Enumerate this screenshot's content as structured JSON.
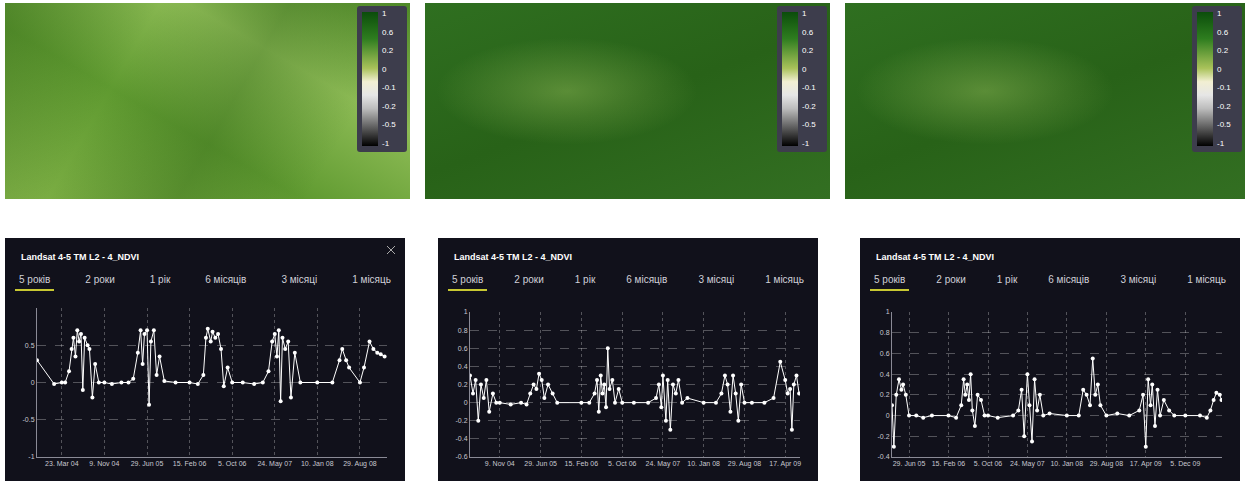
{
  "maps": [
    {
      "colorbar_ticks": [
        1,
        0.6,
        0.2,
        0,
        -0.1,
        -0.2,
        -0.5,
        -1
      ]
    },
    {
      "colorbar_ticks": [
        1,
        0.6,
        0.2,
        0,
        -0.1,
        -0.2,
        -0.5,
        -1
      ]
    },
    {
      "colorbar_ticks": [
        1,
        0.6,
        0.2,
        0,
        -0.1,
        -0.2,
        -0.5,
        -1
      ]
    }
  ],
  "chart_data": [
    {
      "type": "line",
      "title": "Landsat 4-5 TM L2 - 4_NDVI",
      "annotations": [
        "5 років",
        "2 роки",
        "1 рік",
        "6 місяців",
        "3 місяці",
        "1 місяць"
      ],
      "color": "#ffffff",
      "marker": "circle",
      "grid": true,
      "x": [
        "2003-11-09",
        "2004-02-10",
        "2004-03-23",
        "2004-04-10",
        "2004-05-01",
        "2004-05-15",
        "2004-05-25",
        "2004-06-05",
        "2004-06-15",
        "2004-06-25",
        "2004-07-05",
        "2004-07-15",
        "2004-07-25",
        "2004-08-10",
        "2004-08-20",
        "2004-09-05",
        "2004-09-20",
        "2004-10-10",
        "2004-11-09",
        "2004-12-20",
        "2005-02-10",
        "2005-03-20",
        "2005-04-15",
        "2005-05-10",
        "2005-05-25",
        "2005-06-05",
        "2005-06-15",
        "2005-06-29",
        "2005-07-10",
        "2005-07-20",
        "2005-08-05",
        "2005-08-20",
        "2005-09-05",
        "2005-10-01",
        "2005-12-01",
        "2006-02-15",
        "2006-04-01",
        "2006-05-01",
        "2006-05-15",
        "2006-05-25",
        "2006-06-10",
        "2006-06-20",
        "2006-07-05",
        "2006-07-20",
        "2006-08-05",
        "2006-08-20",
        "2006-09-10",
        "2006-10-05",
        "2006-12-01",
        "2007-02-01",
        "2007-03-20",
        "2007-04-20",
        "2007-05-10",
        "2007-05-24",
        "2007-06-05",
        "2007-06-15",
        "2007-06-25",
        "2007-07-05",
        "2007-07-20",
        "2007-08-05",
        "2007-08-20",
        "2007-09-10",
        "2007-10-10",
        "2008-01-10",
        "2008-04-01",
        "2008-05-10",
        "2008-05-25",
        "2008-06-15",
        "2008-07-01",
        "2008-08-29",
        "2008-09-20",
        "2008-10-20",
        "2008-11-10",
        "2008-12-01",
        "2008-12-20",
        "2009-01-10"
      ],
      "values": [
        0.3,
        -0.02,
        0.0,
        0.0,
        0.15,
        0.45,
        0.6,
        0.35,
        0.7,
        0.55,
        0.65,
        -0.1,
        0.6,
        0.5,
        0.45,
        -0.2,
        0.25,
        0.0,
        0.0,
        -0.02,
        0.0,
        0.0,
        0.05,
        0.4,
        0.7,
        0.25,
        0.65,
        0.7,
        -0.3,
        0.55,
        0.7,
        0.1,
        0.35,
        0.02,
        0.0,
        0.0,
        -0.02,
        0.1,
        0.6,
        0.72,
        0.55,
        0.68,
        0.6,
        0.65,
        0.45,
        -0.05,
        0.2,
        0.0,
        0.0,
        -0.02,
        0.0,
        0.15,
        0.55,
        0.65,
        0.35,
        0.7,
        -0.25,
        0.6,
        0.45,
        0.55,
        -0.2,
        0.4,
        0.0,
        0.0,
        0.0,
        0.3,
        0.45,
        0.3,
        0.2,
        0.0,
        0.2,
        0.55,
        0.45,
        0.4,
        0.38,
        0.35
      ],
      "xlim": [
        "2003-11-09",
        "2009-01-23"
      ],
      "xticks": [
        {
          "value": "2004-03-23",
          "label": "23. Mar 04"
        },
        {
          "value": "2004-11-09",
          "label": "9. Nov 04"
        },
        {
          "value": "2005-06-29",
          "label": "29. Jun 05"
        },
        {
          "value": "2006-02-15",
          "label": "15. Feb 06"
        },
        {
          "value": "2006-10-05",
          "label": "5. Oct 06"
        },
        {
          "value": "2007-05-24",
          "label": "24. May 07"
        },
        {
          "value": "2008-01-10",
          "label": "10. Jan 08"
        },
        {
          "value": "2008-08-29",
          "label": "29. Aug 08"
        }
      ],
      "ylim": [
        -1,
        1
      ],
      "yticks": [
        -1,
        -0.5,
        0,
        0.5
      ]
    },
    {
      "type": "line",
      "title": "Landsat 4-5 TM L2 - 4_NDVI",
      "annotations": [
        "5 років",
        "2 роки",
        "1 рік",
        "6 місяців",
        "3 місяці",
        "1 місяць"
      ],
      "color": "#ffffff",
      "marker": "circle",
      "grid": true,
      "x": [
        "2004-05-24",
        "2004-06-10",
        "2004-06-25",
        "2004-07-10",
        "2004-07-25",
        "2004-08-10",
        "2004-08-25",
        "2004-09-10",
        "2004-10-01",
        "2004-10-20",
        "2004-11-09",
        "2005-01-10",
        "2005-03-10",
        "2005-04-10",
        "2005-05-01",
        "2005-05-20",
        "2005-06-05",
        "2005-06-20",
        "2005-07-05",
        "2005-07-20",
        "2005-08-10",
        "2005-09-05",
        "2005-10-01",
        "2006-02-15",
        "2006-04-01",
        "2006-05-01",
        "2006-05-15",
        "2006-05-25",
        "2006-06-05",
        "2006-06-15",
        "2006-06-25",
        "2006-07-05",
        "2006-07-15",
        "2006-07-25",
        "2006-08-10",
        "2006-08-25",
        "2006-09-15",
        "2006-10-05",
        "2006-12-10",
        "2007-03-01",
        "2007-04-15",
        "2007-05-01",
        "2007-05-15",
        "2007-05-24",
        "2007-06-10",
        "2007-06-20",
        "2007-07-05",
        "2007-07-20",
        "2007-08-05",
        "2007-08-20",
        "2007-09-10",
        "2007-10-10",
        "2008-01-10",
        "2008-03-20",
        "2008-04-20",
        "2008-05-10",
        "2008-05-25",
        "2008-06-10",
        "2008-06-25",
        "2008-07-10",
        "2008-07-25",
        "2008-08-10",
        "2008-08-29",
        "2008-10-10",
        "2008-12-20",
        "2009-02-10",
        "2009-03-20",
        "2009-04-17",
        "2009-05-01",
        "2009-05-15",
        "2009-05-25",
        "2009-06-05",
        "2009-06-20",
        "2009-07-05"
      ],
      "values": [
        0.3,
        0.1,
        0.25,
        -0.2,
        0.2,
        0.05,
        0.25,
        -0.1,
        0.1,
        0.0,
        0.0,
        -0.02,
        0.0,
        -0.02,
        0.1,
        0.2,
        0.15,
        0.32,
        0.25,
        0.05,
        0.2,
        0.1,
        0.0,
        0.0,
        0.0,
        0.1,
        0.25,
        -0.1,
        0.3,
        0.1,
        0.2,
        -0.05,
        0.6,
        0.15,
        0.25,
        0.0,
        0.15,
        0.0,
        0.0,
        0.0,
        0.05,
        0.2,
        -0.05,
        0.3,
        -0.2,
        0.25,
        -0.3,
        0.2,
        0.1,
        0.25,
        0.0,
        0.05,
        0.0,
        0.0,
        0.1,
        0.3,
        0.2,
        -0.1,
        0.3,
        0.1,
        -0.2,
        0.2,
        0.0,
        0.0,
        0.0,
        0.05,
        0.45,
        0.25,
        0.1,
        0.15,
        -0.3,
        0.2,
        0.3,
        0.1
      ],
      "xlim": [
        "2004-05-24",
        "2009-07-10"
      ],
      "xticks": [
        {
          "value": "2004-11-09",
          "label": "9. Nov 04"
        },
        {
          "value": "2005-06-29",
          "label": "29. Jun 05"
        },
        {
          "value": "2006-02-15",
          "label": "15. Feb 06"
        },
        {
          "value": "2006-10-05",
          "label": "5. Oct 06"
        },
        {
          "value": "2007-05-24",
          "label": "24. May 07"
        },
        {
          "value": "2008-01-10",
          "label": "10. Jan 08"
        },
        {
          "value": "2008-08-29",
          "label": "29. Aug 08"
        },
        {
          "value": "2009-04-17",
          "label": "17. Apr 09"
        }
      ],
      "ylim": [
        -0.6,
        1
      ],
      "yticks": [
        -0.6,
        -0.4,
        -0.2,
        0,
        0.2,
        0.4,
        0.6,
        0.8,
        1
      ]
    },
    {
      "type": "line",
      "title": "Landsat 4-5 TM L2 - 4_NDVI",
      "annotations": [
        "5 років",
        "2 роки",
        "1 рік",
        "6 місяців",
        "3 місяці",
        "1 місяць"
      ],
      "color": "#ffffff",
      "marker": "circle",
      "grid": true,
      "x": [
        "2005-03-21",
        "2005-04-01",
        "2005-04-15",
        "2005-05-01",
        "2005-05-15",
        "2005-05-25",
        "2005-06-10",
        "2005-06-29",
        "2005-08-10",
        "2005-09-20",
        "2005-11-10",
        "2006-02-15",
        "2006-04-01",
        "2006-05-01",
        "2006-05-15",
        "2006-05-25",
        "2006-06-05",
        "2006-06-15",
        "2006-06-25",
        "2006-07-05",
        "2006-07-20",
        "2006-08-05",
        "2006-08-25",
        "2006-09-15",
        "2006-10-05",
        "2006-12-01",
        "2007-03-01",
        "2007-04-01",
        "2007-04-20",
        "2007-05-05",
        "2007-05-24",
        "2007-06-05",
        "2007-06-20",
        "2007-07-05",
        "2007-07-20",
        "2007-08-05",
        "2007-08-25",
        "2007-10-01",
        "2008-01-10",
        "2008-03-20",
        "2008-04-15",
        "2008-05-05",
        "2008-05-25",
        "2008-06-10",
        "2008-06-25",
        "2008-07-10",
        "2008-07-25",
        "2008-08-29",
        "2008-11-01",
        "2009-01-10",
        "2009-03-10",
        "2009-04-01",
        "2009-04-17",
        "2009-05-01",
        "2009-05-15",
        "2009-05-25",
        "2009-06-10",
        "2009-06-25",
        "2009-07-10",
        "2009-08-01",
        "2009-09-01",
        "2009-10-01",
        "2009-12-05",
        "2010-03-01",
        "2010-04-10",
        "2010-05-01",
        "2010-05-20",
        "2010-06-05",
        "2010-06-25",
        "2010-07-05"
      ],
      "values": [
        0.1,
        -0.3,
        0.2,
        0.35,
        0.25,
        0.3,
        0.2,
        0.0,
        0.0,
        -0.02,
        0.0,
        0.0,
        -0.02,
        0.1,
        0.35,
        0.2,
        0.3,
        0.15,
        0.4,
        0.05,
        -0.1,
        0.2,
        0.15,
        0.0,
        0.0,
        -0.02,
        0.0,
        0.05,
        0.25,
        -0.2,
        0.4,
        0.1,
        -0.25,
        0.35,
        0.05,
        0.2,
        0.0,
        0.02,
        0.0,
        0.0,
        0.25,
        0.2,
        0.1,
        0.55,
        0.2,
        0.3,
        0.1,
        0.0,
        0.02,
        0.0,
        0.05,
        0.2,
        -0.3,
        0.35,
        0.1,
        0.3,
        -0.1,
        0.25,
        0.0,
        0.15,
        0.05,
        0.0,
        0.0,
        0.0,
        -0.02,
        0.05,
        0.15,
        0.22,
        0.2,
        0.15
      ],
      "xlim": [
        "2005-03-21",
        "2010-07-08"
      ],
      "xticks": [
        {
          "value": "2005-06-29",
          "label": "29. Jun 05"
        },
        {
          "value": "2006-02-15",
          "label": "15. Feb 06"
        },
        {
          "value": "2006-10-05",
          "label": "5. Oct 06"
        },
        {
          "value": "2007-05-24",
          "label": "24. May 07"
        },
        {
          "value": "2008-01-10",
          "label": "10. Jan 08"
        },
        {
          "value": "2008-08-29",
          "label": "29. Aug 08"
        },
        {
          "value": "2009-04-17",
          "label": "17. Apr 09"
        },
        {
          "value": "2009-12-05",
          "label": "5. Dec 09"
        }
      ],
      "ylim": [
        -0.4,
        1
      ],
      "yticks": [
        -0.4,
        -0.2,
        0,
        0.2,
        0.4,
        0.6,
        0.8,
        1
      ]
    }
  ]
}
